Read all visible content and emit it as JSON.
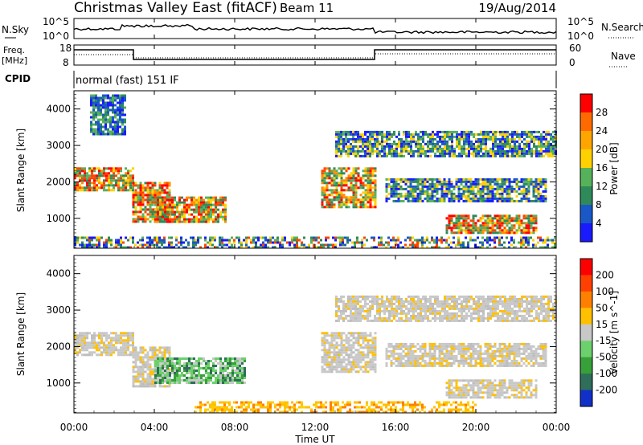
{
  "header": {
    "title": "Christmas Valley East (fitACF)",
    "beam": "Beam 11",
    "date": "19/Aug/2014"
  },
  "top_panels": {
    "nsky_label": "N.Sky",
    "nsky_ticks": [
      "10^5",
      "10^0"
    ],
    "nsearch_label": "N.Search",
    "nsearch_ticks": [
      "10^5",
      "10^0"
    ],
    "freq_label": "Freq.",
    "freq_unit": "[MHz]",
    "freq_ticks": [
      "18",
      "8"
    ],
    "nave_label": "Nave",
    "nave_ticks": [
      "60",
      "0"
    ],
    "cpid_label": "CPID",
    "cpid_text": "normal (fast) 151 IF"
  },
  "chart_data": [
    {
      "type": "heatmap",
      "name": "power",
      "ylabel": "Slant Range [km]",
      "yticks": [
        1000,
        2000,
        3000,
        4000
      ],
      "ylim": [
        180,
        4500
      ],
      "xlim": [
        0,
        24
      ],
      "colorbar_label": "Power [dB]",
      "colorbar_ticks": [
        "4",
        "8",
        "12",
        "16",
        "20",
        "24",
        "28"
      ],
      "colorbar_colors": [
        "#1a1aff",
        "#1a58c8",
        "#2f8a5a",
        "#56b25a",
        "#ffd100",
        "#ffa500",
        "#ff6a00",
        "#ff0000"
      ],
      "echo_regions": [
        {
          "t0": 0.0,
          "t1": 3.0,
          "r0": 1750,
          "r1": 2400,
          "level": "strong"
        },
        {
          "t0": 0.8,
          "t1": 2.5,
          "r0": 3300,
          "r1": 4400,
          "level": "weak"
        },
        {
          "t0": 2.9,
          "t1": 4.8,
          "r0": 900,
          "r1": 2000,
          "level": "strong"
        },
        {
          "t0": 4.0,
          "t1": 7.6,
          "r0": 900,
          "r1": 1600,
          "level": "strong"
        },
        {
          "t0": 12.3,
          "t1": 15.0,
          "r0": 1300,
          "r1": 2400,
          "level": "strong"
        },
        {
          "t0": 13.0,
          "t1": 24.0,
          "r0": 2700,
          "r1": 3400,
          "level": "medium"
        },
        {
          "t0": 15.5,
          "t1": 23.5,
          "r0": 1500,
          "r1": 2100,
          "level": "medium"
        },
        {
          "t0": 18.5,
          "t1": 23.0,
          "r0": 600,
          "r1": 1100,
          "level": "strong"
        },
        {
          "t0": 0.0,
          "t1": 24.0,
          "r0": 180,
          "r1": 500,
          "level": "noise"
        }
      ]
    },
    {
      "type": "heatmap",
      "name": "velocity",
      "ylabel": "Slant Range [km]",
      "yticks": [
        1000,
        2000,
        3000,
        4000
      ],
      "ylim": [
        180,
        4500
      ],
      "xlim": [
        0,
        24
      ],
      "xlabel": "Time UT",
      "xticks": [
        "00:00",
        "04:00",
        "08:00",
        "12:00",
        "16:00",
        "20:00",
        "00:00"
      ],
      "colorbar_label": "Velocity [m s^-1]",
      "colorbar_ticks": [
        "200",
        "100",
        "50",
        "15",
        "-15",
        "-50",
        "-100",
        "-200"
      ],
      "colorbar_colors": [
        "#1030c8",
        "#2e6e5a",
        "#38a038",
        "#6cd06c",
        "#c8c8c8",
        "#ffc000",
        "#ff8000",
        "#ff4000",
        "#ff0000"
      ],
      "echo_regions": [
        {
          "t0": 0.0,
          "t1": 3.0,
          "r0": 1750,
          "r1": 2400,
          "level": "ground"
        },
        {
          "t0": 2.9,
          "t1": 4.8,
          "r0": 900,
          "r1": 2000,
          "level": "ground"
        },
        {
          "t0": 4.0,
          "t1": 8.5,
          "r0": 1000,
          "r1": 1700,
          "level": "green"
        },
        {
          "t0": 12.3,
          "t1": 15.0,
          "r0": 1300,
          "r1": 2400,
          "level": "ground"
        },
        {
          "t0": 13.0,
          "t1": 24.0,
          "r0": 2700,
          "r1": 3400,
          "level": "ground"
        },
        {
          "t0": 15.5,
          "t1": 23.5,
          "r0": 1500,
          "r1": 2100,
          "level": "ground"
        },
        {
          "t0": 18.5,
          "t1": 23.0,
          "r0": 600,
          "r1": 1100,
          "level": "ground"
        },
        {
          "t0": 6.0,
          "t1": 20.0,
          "r0": 180,
          "r1": 500,
          "level": "orange"
        }
      ]
    }
  ]
}
